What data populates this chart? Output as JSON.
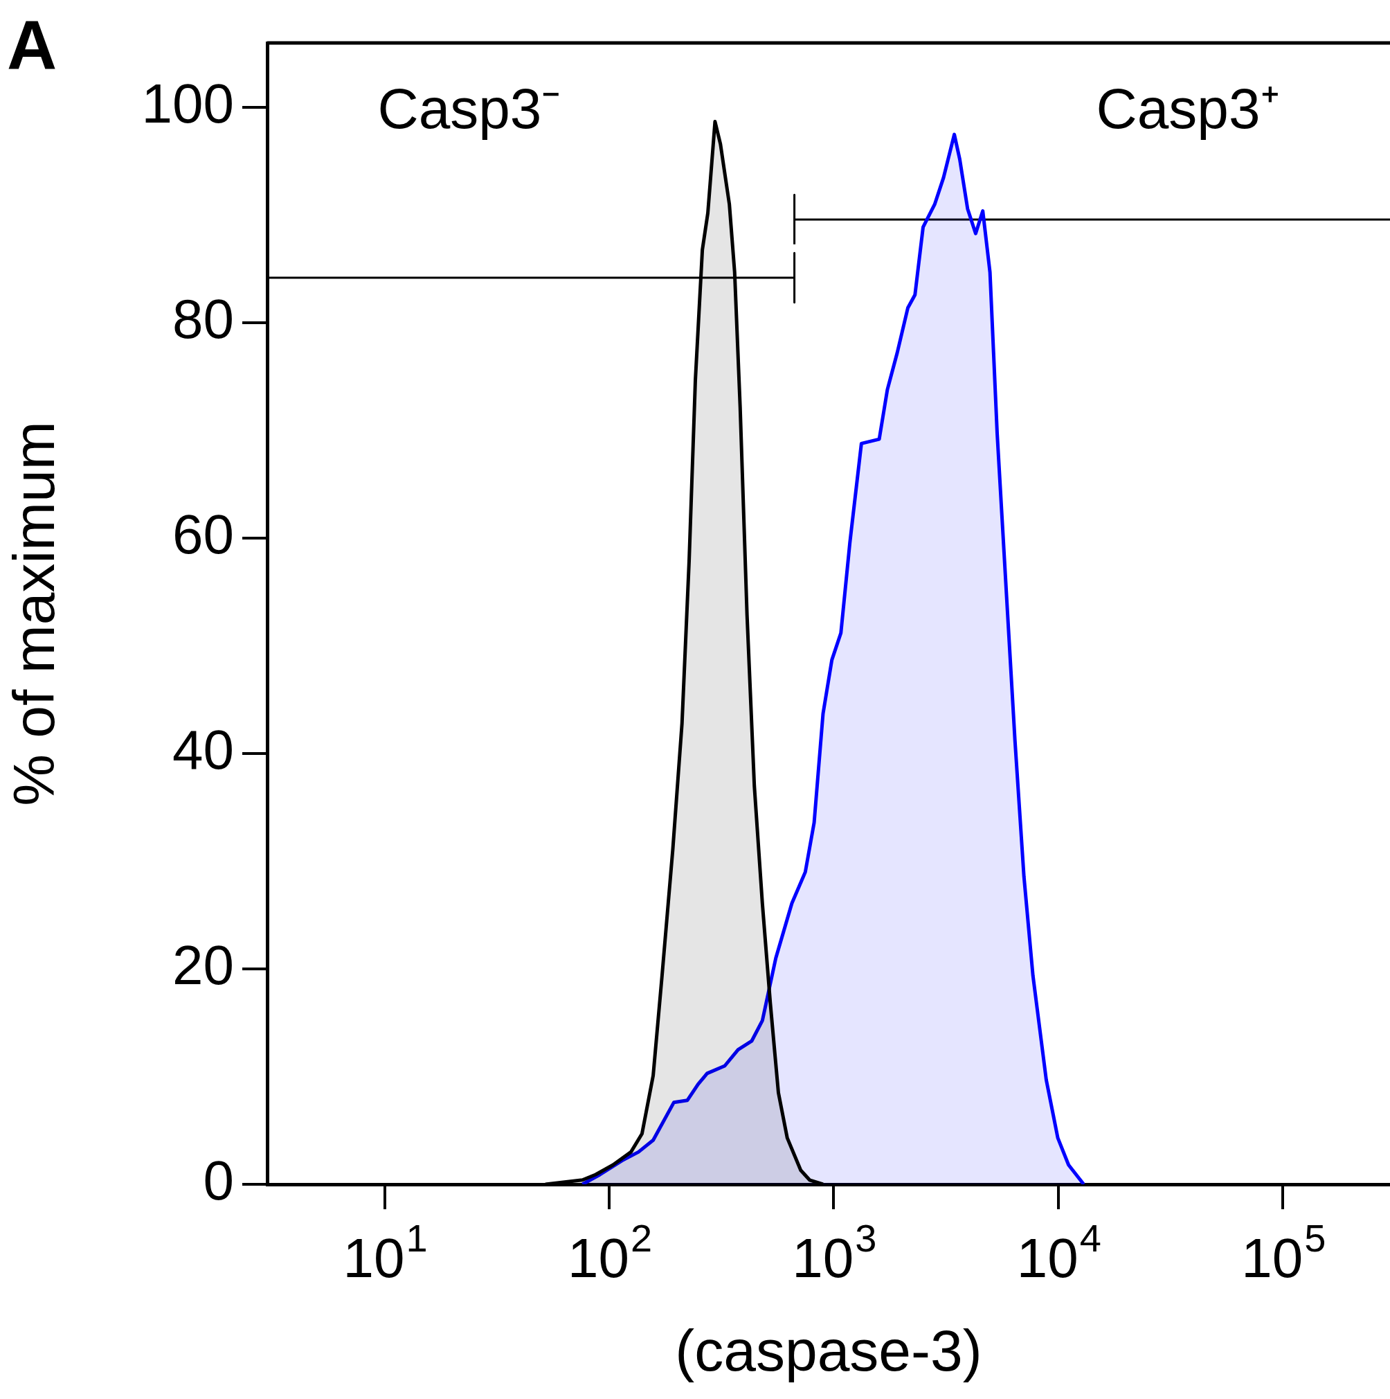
{
  "chart_data": {
    "type": "area",
    "xlabel": "(caspase-3)",
    "ylabel": "% of maximum",
    "log": "x",
    "xlim": [
      3,
      300000
    ],
    "ylim": [
      0,
      106
    ],
    "xticks": [
      {
        "value": 10,
        "label": "10$^{1}$"
      },
      {
        "value": 100,
        "label": "10$^{2}$"
      },
      {
        "value": 1000,
        "label": "10$^{3}$"
      },
      {
        "value": 10000,
        "label": "10$^{4}$"
      },
      {
        "value": 100000,
        "label": "10$^{5}$"
      }
    ],
    "yticks": [
      0,
      20,
      40,
      60,
      80,
      100
    ],
    "series": [
      {
        "color": "#000000",
        "x": [
          52,
          76,
          87,
          104,
          125,
          140,
          157,
          172,
          192,
          211,
          227,
          242,
          260,
          275,
          296,
          313,
          343,
          362,
          383,
          411,
          443,
          481,
          522,
          567,
          621,
          713,
          781,
          896
        ],
        "values": [
          0,
          0.4,
          0.9,
          1.8,
          3.0,
          4.7,
          10.1,
          19.4,
          31.1,
          42.8,
          57.9,
          74.7,
          86.8,
          90.2,
          98.7,
          96.6,
          91.0,
          84.7,
          72.2,
          52.9,
          37.0,
          26.1,
          16.8,
          8.5,
          4.3,
          1.3,
          0.4,
          0
        ]
      },
      {
        "color": "#0000ff",
        "x": [
          76,
          91,
          114,
          135,
          157,
          194,
          223,
          249,
          273,
          327,
          375,
          431,
          481,
          552,
          651,
          747,
          818,
          896,
          981,
          1076,
          1180,
          1328,
          1594,
          1733,
          1916,
          2138,
          2300,
          2500,
          2814,
          3083,
          3443,
          3640,
          3945,
          4285,
          4610,
          4963,
          5344,
          5854,
          6413,
          7030,
          7709,
          8839,
          9952,
          11110,
          12980
        ],
        "values": [
          0,
          0.9,
          2.2,
          3.0,
          4.1,
          7.6,
          7.8,
          9.3,
          10.3,
          11.0,
          12.5,
          13.3,
          15.2,
          21.0,
          26.1,
          29.0,
          33.6,
          43.7,
          48.7,
          51.2,
          59.6,
          68.8,
          69.2,
          73.8,
          77.2,
          81.4,
          82.6,
          88.9,
          91.0,
          93.5,
          97.5,
          95.2,
          90.6,
          88.3,
          90.4,
          84.7,
          69.7,
          55.4,
          41.2,
          28.6,
          19.4,
          9.7,
          4.3,
          1.8,
          0
        ]
      },
      {
        "type": "line",
        "color": "#000000",
        "x": [
          3,
          668,
          668,
          668
        ],
        "values": [
          84.2,
          84.2,
          86.5,
          81.9
        ]
      },
      {
        "type": "line",
        "color": "#000000",
        "x": [
          668,
          668,
          668,
          300000
        ],
        "values": [
          87.3,
          91.9,
          89.6,
          89.6
        ]
      }
    ],
    "annotations": [
      "A",
      "Casp3⁻",
      "Casp3⁺"
    ]
  }
}
